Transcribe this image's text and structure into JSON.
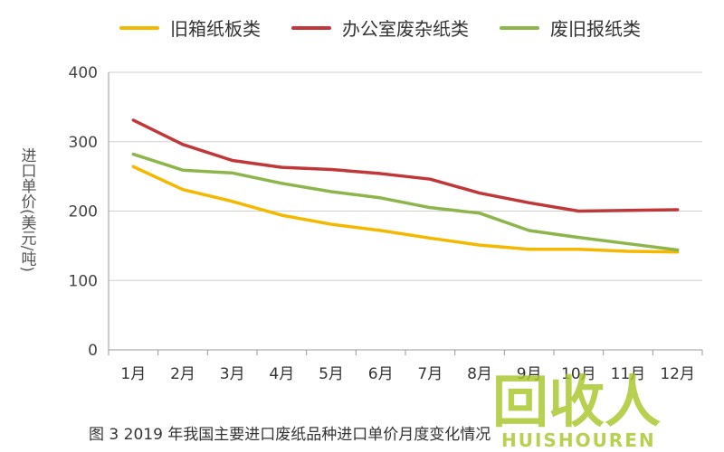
{
  "chart_data": {
    "type": "line",
    "categories": [
      "1月",
      "2月",
      "3月",
      "4月",
      "5月",
      "6月",
      "7月",
      "8月",
      "9月",
      "10月",
      "11月",
      "12月"
    ],
    "series": [
      {
        "name": "旧箱纸板类",
        "color": "#f5b800",
        "values": [
          264,
          231,
          214,
          194,
          181,
          172,
          161,
          151,
          145,
          145,
          142,
          141
        ]
      },
      {
        "name": "办公室废杂纸类",
        "color": "#c0373a",
        "values": [
          331,
          296,
          273,
          263,
          260,
          254,
          246,
          226,
          212,
          200,
          201,
          202
        ]
      },
      {
        "name": "废旧报纸类",
        "color": "#8db54b",
        "values": [
          282,
          259,
          255,
          240,
          228,
          219,
          205,
          197,
          172,
          162,
          153,
          144
        ]
      }
    ],
    "ylabel": "进口单价(美元/吨)",
    "ylim": [
      0,
      400
    ],
    "yticks": [
      0,
      100,
      200,
      300,
      400
    ],
    "grid": true,
    "legend_position": "top"
  },
  "caption": "图 3    2019 年我国主要进口废纸品种进口单价月度变化情况",
  "watermark": {
    "logo_text": "回收人",
    "subtext": "HUISHOUREN",
    "color": "#a8c62a"
  }
}
